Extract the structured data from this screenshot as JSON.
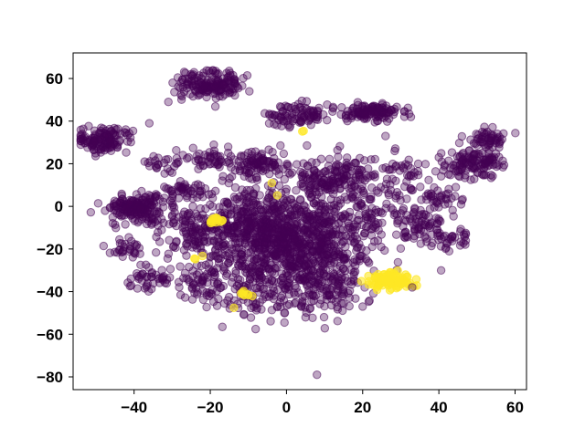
{
  "chart_data": {
    "type": "scatter",
    "title": "",
    "xlabel": "",
    "ylabel": "",
    "xlim": [
      -56,
      63
    ],
    "ylim": [
      -86,
      72
    ],
    "grid": false,
    "legend": "none",
    "x_ticks": [
      "−40",
      "−20",
      "0",
      "20",
      "40",
      "60"
    ],
    "x_tick_values": [
      -40,
      -20,
      0,
      20,
      40,
      60
    ],
    "y_ticks": [
      "60",
      "40",
      "20",
      "0",
      "−20",
      "−40",
      "−60",
      "−80"
    ],
    "y_tick_values": [
      60,
      40,
      20,
      0,
      -20,
      -40,
      -60,
      -80
    ],
    "marker_alpha": 0.35,
    "colors": {
      "class_0": "#440154",
      "class_1": "#fde725"
    },
    "clusters": [
      {
        "class": 0,
        "center": [
          0,
          -20
        ],
        "spread": [
          10,
          12
        ],
        "count": 950
      },
      {
        "class": 0,
        "center": [
          -5,
          -5
        ],
        "spread": [
          10,
          8
        ],
        "count": 250
      },
      {
        "class": 0,
        "center": [
          12,
          14
        ],
        "spread": [
          6,
          5
        ],
        "count": 160
      },
      {
        "class": 0,
        "center": [
          -8,
          20
        ],
        "spread": [
          4,
          3
        ],
        "count": 90
      },
      {
        "class": 0,
        "center": [
          -20,
          57
        ],
        "spread": [
          4.5,
          3.5
        ],
        "count": 170
      },
      {
        "class": 0,
        "center": [
          23,
          44
        ],
        "spread": [
          4,
          2
        ],
        "count": 120
      },
      {
        "class": 0,
        "center": [
          3,
          43
        ],
        "spread": [
          4,
          2.5
        ],
        "count": 90
      },
      {
        "class": 0,
        "center": [
          -48,
          31
        ],
        "spread": [
          3.5,
          3
        ],
        "count": 130
      },
      {
        "class": 0,
        "center": [
          -39,
          -1
        ],
        "spread": [
          4.5,
          3.5
        ],
        "count": 180
      },
      {
        "class": 0,
        "center": [
          49,
          20
        ],
        "spread": [
          4,
          3
        ],
        "count": 120
      },
      {
        "class": 0,
        "center": [
          53,
          32
        ],
        "spread": [
          2.5,
          2
        ],
        "count": 55
      },
      {
        "class": 0,
        "center": [
          -20,
          22
        ],
        "spread": [
          3,
          3
        ],
        "count": 45
      },
      {
        "class": 0,
        "center": [
          -22,
          -12
        ],
        "spread": [
          6,
          6
        ],
        "count": 130
      },
      {
        "class": 0,
        "center": [
          -27,
          8
        ],
        "spread": [
          2.5,
          2
        ],
        "count": 40
      },
      {
        "class": 0,
        "center": [
          -42,
          -20
        ],
        "spread": [
          2.5,
          2
        ],
        "count": 30
      },
      {
        "class": 0,
        "center": [
          -36,
          -33
        ],
        "spread": [
          3,
          3
        ],
        "count": 40
      },
      {
        "class": 0,
        "center": [
          -22,
          -36
        ],
        "spread": [
          4,
          4
        ],
        "count": 60
      },
      {
        "class": 0,
        "center": [
          12,
          -40
        ],
        "spread": [
          5,
          5
        ],
        "count": 80
      },
      {
        "class": 0,
        "center": [
          25,
          -2
        ],
        "spread": [
          6,
          6
        ],
        "count": 90
      },
      {
        "class": 0,
        "center": [
          35,
          -10
        ],
        "spread": [
          4,
          4
        ],
        "count": 60
      },
      {
        "class": 0,
        "center": [
          40,
          3
        ],
        "spread": [
          3,
          3
        ],
        "count": 35
      },
      {
        "class": 0,
        "center": [
          43,
          -16
        ],
        "spread": [
          3,
          3
        ],
        "count": 30
      },
      {
        "class": 0,
        "center": [
          30,
          15
        ],
        "spread": [
          4,
          5
        ],
        "count": 50
      },
      {
        "class": 0,
        "center": [
          -32,
          20
        ],
        "spread": [
          3,
          3
        ],
        "count": 25
      },
      {
        "class": 0,
        "center": [
          -10,
          -43
        ],
        "spread": [
          4,
          4
        ],
        "count": 40
      },
      {
        "class": 1,
        "center": [
          27,
          -35
        ],
        "spread": [
          2.8,
          2
        ],
        "count": 110
      },
      {
        "class": 1,
        "center": [
          -18,
          -7
        ],
        "spread": [
          1.5,
          0.8
        ],
        "count": 14
      },
      {
        "class": 1,
        "center": [
          -11,
          -41
        ],
        "spread": [
          1.5,
          0.8
        ],
        "count": 8
      },
      {
        "class": 1,
        "center": [
          -24,
          -24
        ],
        "spread": [
          0.8,
          0.8
        ],
        "count": 3
      },
      {
        "class": 1,
        "center": [
          5,
          35
        ],
        "spread": [
          0.5,
          0.5
        ],
        "count": 2
      },
      {
        "class": 1,
        "center": [
          -4,
          10
        ],
        "spread": [
          0.5,
          0.5
        ],
        "count": 1
      },
      {
        "class": 1,
        "center": [
          -2,
          4
        ],
        "spread": [
          0.5,
          0.5
        ],
        "count": 1
      },
      {
        "class": 1,
        "center": [
          -13,
          -47
        ],
        "spread": [
          0.5,
          0.5
        ],
        "count": 1
      }
    ],
    "outliers": [
      {
        "class": 0,
        "x": 8,
        "y": -79
      },
      {
        "class": 0,
        "x": 20,
        "y": -47
      },
      {
        "class": 0,
        "x": 33,
        "y": -38
      },
      {
        "class": 0,
        "x": -36,
        "y": 39
      },
      {
        "class": 0,
        "x": 16,
        "y": 40
      },
      {
        "class": 0,
        "x": 26,
        "y": 33
      },
      {
        "class": 0,
        "x": 40,
        "y": 23
      },
      {
        "class": 0,
        "x": -31,
        "y": 49
      }
    ]
  }
}
